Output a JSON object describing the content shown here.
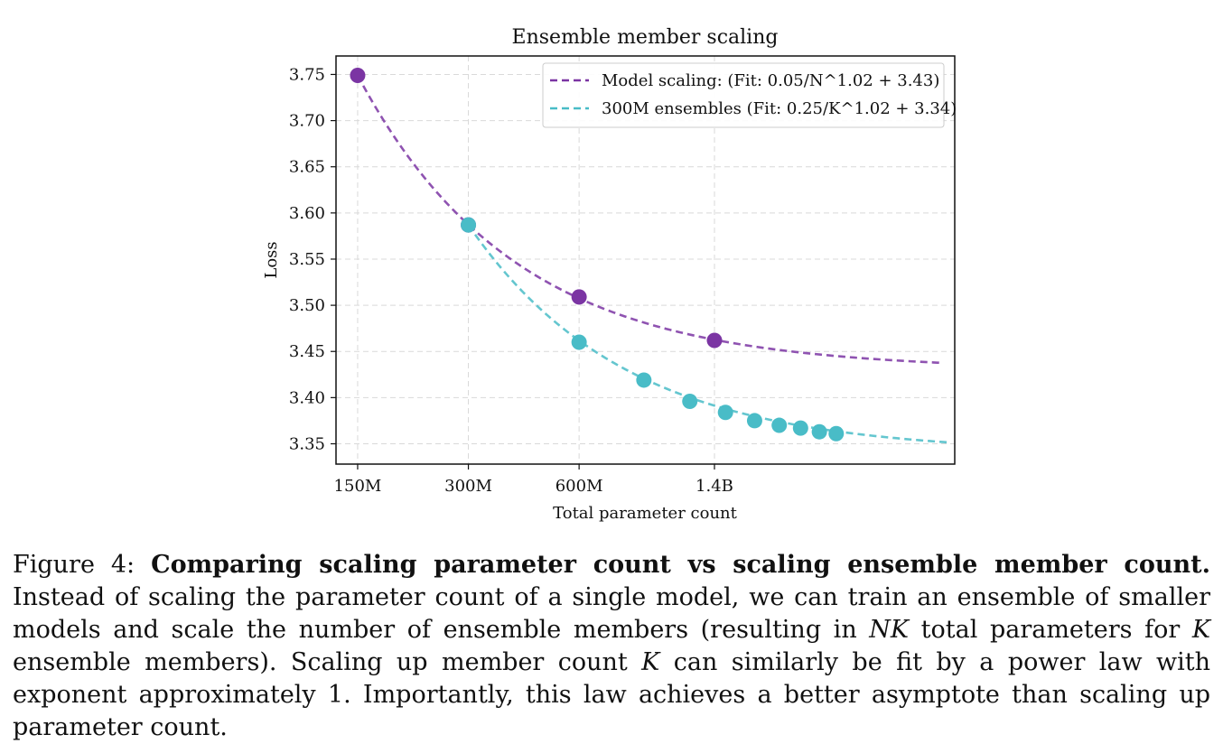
{
  "caption": {
    "label": "Figure 4:",
    "bold_title": "Comparing scaling parameter count vs scaling ensemble member count.",
    "t1": " Instead of scaling the parameter count of a single model, we can train an ensemble of smaller models and scale the number of ensemble members (resulting in ",
    "m1": "NK",
    "t2": " total parameters for ",
    "m2": "K",
    "t3": " ensemble members). Scaling up member count ",
    "m3": "K",
    "t4": " can similarly be fit by a power law with exponent approximately 1. Importantly, this law achieves a better asymptote than scaling up parameter count."
  },
  "chart_data": {
    "type": "scatter",
    "title": "Ensemble member scaling",
    "xlabel": "Total parameter count",
    "ylabel": "Loss",
    "x_scale": "log",
    "x_unit": "millions of parameters",
    "xlim": [
      131,
      6300
    ],
    "ylim": [
      3.328,
      3.77
    ],
    "xticks": [
      {
        "value": 150,
        "label": "150M"
      },
      {
        "value": 300,
        "label": "300M"
      },
      {
        "value": 600,
        "label": "600M"
      },
      {
        "value": 1400,
        "label": "1.4B"
      }
    ],
    "yticks": [
      3.35,
      3.4,
      3.45,
      3.5,
      3.55,
      3.6,
      3.65,
      3.7,
      3.75
    ],
    "grid": true,
    "legend_position": "top-right",
    "colors": {
      "model": "#7b35a3",
      "ensemble": "#49bcc7"
    },
    "series": [
      {
        "name": "Model scaling: (Fit: 0.05/N^1.02 + 3.43)",
        "points": [
          {
            "x": 150,
            "y": 3.749
          },
          {
            "x": 300,
            "y": 3.587
          },
          {
            "x": 600,
            "y": 3.509
          },
          {
            "x": 1400,
            "y": 3.462
          }
        ],
        "fit": {
          "a": 0.05,
          "b": 1.02,
          "c": 3.43,
          "x_range": [
            150,
            5800
          ]
        }
      },
      {
        "name": "300M ensembles (Fit: 0.25/K^1.02 + 3.34)",
        "points": [
          {
            "x": 300,
            "y": 3.587
          },
          {
            "x": 600,
            "y": 3.46
          },
          {
            "x": 900,
            "y": 3.419
          },
          {
            "x": 1200,
            "y": 3.396
          },
          {
            "x": 1500,
            "y": 3.384
          },
          {
            "x": 1800,
            "y": 3.375
          },
          {
            "x": 2100,
            "y": 3.37
          },
          {
            "x": 2400,
            "y": 3.367
          },
          {
            "x": 2700,
            "y": 3.363
          },
          {
            "x": 3000,
            "y": 3.361
          }
        ],
        "fit": {
          "a": 0.25,
          "b": 1.02,
          "c": 3.34,
          "x_range": [
            300,
            6000
          ]
        }
      }
    ]
  }
}
